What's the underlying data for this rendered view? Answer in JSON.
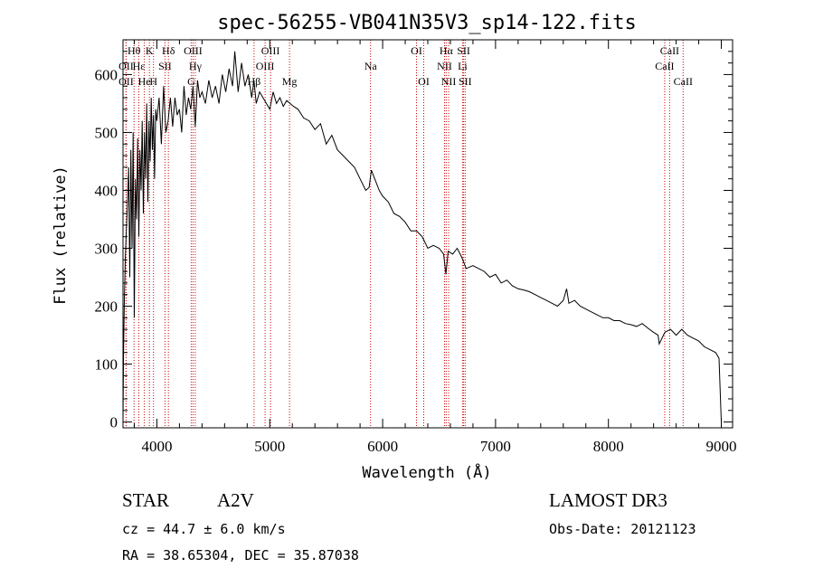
{
  "chart_data": {
    "type": "line",
    "title": "spec-56255-VB041N35V3_sp14-122.fits",
    "xlabel": "Wavelength (Å)",
    "ylabel": "Flux (relative)",
    "xlim": [
      3700,
      9100
    ],
    "ylim": [
      -10,
      660
    ],
    "xticks": [
      4000,
      5000,
      6000,
      7000,
      8000,
      9000
    ],
    "yticks": [
      0,
      100,
      200,
      300,
      400,
      500,
      600
    ],
    "grid": false,
    "line_color": "#000000",
    "marker_color": "#cc0000",
    "series": [
      {
        "name": "flux",
        "x": [
          3700,
          3705,
          3712,
          3720,
          3730,
          3740,
          3750,
          3760,
          3770,
          3780,
          3790,
          3800,
          3810,
          3820,
          3830,
          3840,
          3850,
          3860,
          3870,
          3880,
          3890,
          3900,
          3910,
          3920,
          3930,
          3940,
          3950,
          3960,
          3970,
          3980,
          3990,
          4000,
          4020,
          4040,
          4060,
          4080,
          4100,
          4120,
          4140,
          4160,
          4180,
          4200,
          4220,
          4240,
          4260,
          4280,
          4300,
          4320,
          4340,
          4360,
          4380,
          4400,
          4430,
          4460,
          4490,
          4520,
          4550,
          4580,
          4610,
          4640,
          4670,
          4690,
          4720,
          4750,
          4780,
          4810,
          4840,
          4860,
          4880,
          4910,
          4940,
          4970,
          5000,
          5030,
          5060,
          5090,
          5120,
          5150,
          5180,
          5210,
          5250,
          5300,
          5350,
          5400,
          5450,
          5500,
          5550,
          5600,
          5650,
          5700,
          5750,
          5800,
          5850,
          5880,
          5900,
          5930,
          5970,
          6000,
          6050,
          6100,
          6150,
          6200,
          6250,
          6300,
          6350,
          6400,
          6450,
          6500,
          6540,
          6560,
          6580,
          6620,
          6660,
          6700,
          6740,
          6800,
          6850,
          6900,
          6950,
          7000,
          7050,
          7100,
          7150,
          7200,
          7250,
          7300,
          7350,
          7400,
          7450,
          7500,
          7550,
          7600,
          7630,
          7650,
          7700,
          7750,
          7800,
          7850,
          7900,
          7950,
          8000,
          8050,
          8100,
          8150,
          8200,
          8250,
          8300,
          8350,
          8400,
          8440,
          8450,
          8500,
          8550,
          8600,
          8650,
          8700,
          8750,
          8800,
          8850,
          8900,
          8950,
          8980,
          9000
        ],
        "y": [
          0,
          120,
          210,
          280,
          330,
          380,
          440,
          250,
          470,
          300,
          500,
          180,
          420,
          350,
          490,
          320,
          470,
          400,
          520,
          360,
          500,
          420,
          550,
          380,
          520,
          450,
          560,
          470,
          530,
          420,
          540,
          520,
          560,
          480,
          580,
          500,
          520,
          560,
          510,
          560,
          530,
          540,
          500,
          580,
          530,
          560,
          540,
          580,
          510,
          590,
          560,
          570,
          550,
          590,
          560,
          580,
          550,
          600,
          570,
          610,
          580,
          640,
          570,
          620,
          580,
          600,
          560,
          590,
          550,
          570,
          560,
          550,
          540,
          570,
          550,
          560,
          545,
          555,
          550,
          545,
          540,
          525,
          520,
          505,
          515,
          480,
          495,
          470,
          460,
          450,
          440,
          420,
          400,
          405,
          435,
          420,
          400,
          390,
          380,
          360,
          355,
          345,
          330,
          330,
          320,
          300,
          305,
          300,
          290,
          255,
          295,
          290,
          300,
          285,
          265,
          270,
          265,
          260,
          250,
          255,
          240,
          245,
          235,
          230,
          228,
          225,
          220,
          215,
          210,
          205,
          200,
          210,
          230,
          205,
          210,
          200,
          195,
          190,
          185,
          180,
          180,
          175,
          175,
          170,
          168,
          165,
          170,
          162,
          155,
          150,
          135,
          155,
          160,
          150,
          160,
          150,
          145,
          140,
          130,
          125,
          120,
          110,
          0
        ]
      }
    ],
    "spectral_lines": [
      {
        "name": "Hθ",
        "wavelength": 3798,
        "row": 1
      },
      {
        "name": "OII",
        "wavelength": 3727,
        "row": 2
      },
      {
        "name": "OII",
        "wavelength": 3727,
        "row": 3
      },
      {
        "name": "Hε",
        "wavelength": 3840,
        "row": 2
      },
      {
        "name": "He",
        "wavelength": 3889,
        "row": 3
      },
      {
        "name": "K",
        "wavelength": 3934,
        "row": 1
      },
      {
        "name": "H",
        "wavelength": 3970,
        "row": 3
      },
      {
        "name": "SII",
        "wavelength": 4072,
        "row": 2
      },
      {
        "name": "Hδ",
        "wavelength": 4102,
        "row": 1
      },
      {
        "name": "OIII",
        "wavelength": 4320,
        "row": 1
      },
      {
        "name": "Hγ",
        "wavelength": 4340,
        "row": 2
      },
      {
        "name": "G",
        "wavelength": 4304,
        "row": 3
      },
      {
        "name": "Hβ",
        "wavelength": 4861,
        "row": 3
      },
      {
        "name": "OIII",
        "wavelength": 5007,
        "row": 1
      },
      {
        "name": "OIII",
        "wavelength": 4959,
        "row": 2
      },
      {
        "name": "Mg",
        "wavelength": 5175,
        "row": 3
      },
      {
        "name": "Na",
        "wavelength": 5893,
        "row": 2
      },
      {
        "name": "OI",
        "wavelength": 6300,
        "row": 1
      },
      {
        "name": "OI",
        "wavelength": 6364,
        "row": 3
      },
      {
        "name": "Hα",
        "wavelength": 6563,
        "row": 1
      },
      {
        "name": "NII",
        "wavelength": 6548,
        "row": 2
      },
      {
        "name": "NII",
        "wavelength": 6584,
        "row": 3
      },
      {
        "name": "SII",
        "wavelength": 6717,
        "row": 1
      },
      {
        "name": "Li",
        "wavelength": 6708,
        "row": 2
      },
      {
        "name": "SII",
        "wavelength": 6731,
        "row": 3
      },
      {
        "name": "CaII",
        "wavelength": 8542,
        "row": 1
      },
      {
        "name": "CaII",
        "wavelength": 8498,
        "row": 2
      },
      {
        "name": "CaII",
        "wavelength": 8662,
        "row": 3
      }
    ]
  },
  "info": {
    "class": "STAR",
    "subclass": "A2V",
    "cz": "cz = 44.7 ± 6.0 km/s",
    "coords": "RA =  38.65304, DEC =  35.87038",
    "survey": "LAMOST DR3",
    "obs_date": "Obs-Date: 20121123"
  }
}
